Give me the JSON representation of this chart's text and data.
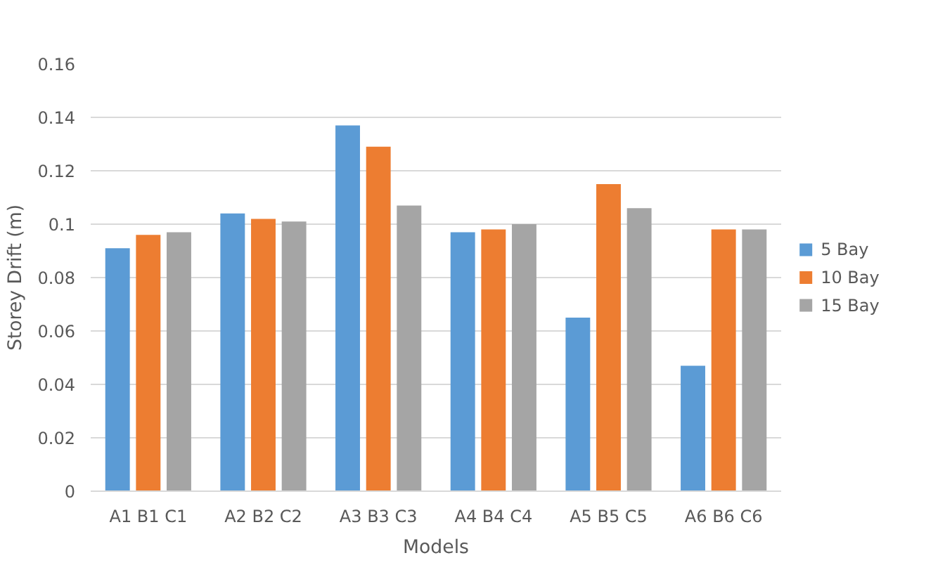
{
  "chart_data": {
    "type": "bar",
    "xlabel": "Models",
    "ylabel": "Storey Drift (m)",
    "categories": [
      "A1 B1 C1",
      "A2 B2 C2",
      "A3 B3 C3",
      "A4 B4 C4",
      "A5 B5 C5",
      "A6 B6 C6"
    ],
    "series": [
      {
        "name": "5 Bay",
        "color": "#5b9bd5",
        "values": [
          0.091,
          0.104,
          0.137,
          0.097,
          0.065,
          0.047
        ]
      },
      {
        "name": "10 Bay",
        "color": "#ed7d31",
        "values": [
          0.096,
          0.102,
          0.129,
          0.098,
          0.115,
          0.098
        ]
      },
      {
        "name": "15 Bay",
        "color": "#a5a5a5",
        "values": [
          0.097,
          0.101,
          0.107,
          0.1,
          0.106,
          0.098
        ]
      }
    ],
    "ylim": [
      0,
      0.16
    ],
    "yticks": [
      0,
      0.02,
      0.04,
      0.06,
      0.08,
      0.1,
      0.12,
      0.14,
      0.16
    ],
    "grid": "y",
    "legend": "right"
  }
}
